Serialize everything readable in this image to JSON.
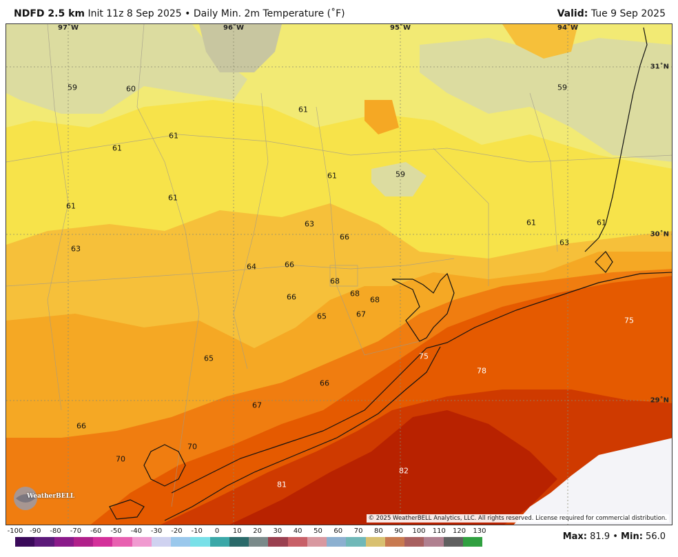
{
  "header": {
    "model": "NDFD 2.5 km",
    "init": "Init 11z 8 Sep 2025",
    "sep": "•",
    "title": "Daily Min. 2m Temperature (˚F)",
    "valid_label": "Valid",
    "valid_value": "Tue 9 Sep 2025"
  },
  "lon_ticks": [
    "97˚W",
    "96˚W",
    "95˚W",
    "94˚W"
  ],
  "lat_ticks": [
    "31˚N",
    "30˚N",
    "29˚N"
  ],
  "values": [
    "59",
    "60",
    "61",
    "61",
    "61",
    "61",
    "61",
    "61",
    "59",
    "59",
    "61",
    "61",
    "63",
    "63",
    "66",
    "64",
    "66",
    "68",
    "68",
    "68",
    "66",
    "65",
    "67",
    "63",
    "75",
    "78",
    "75",
    "65",
    "66",
    "67",
    "66",
    "70",
    "70",
    "81",
    "82"
  ],
  "copyright": "© 2025 WeatherBELL Analytics, LLC. All rights reserved. License required for commercial distribution.",
  "logo_text": "WeatherBELL",
  "colorbar": {
    "labels": [
      "-100",
      "-90",
      "-80",
      "-70",
      "-60",
      "-50",
      "-40",
      "-30",
      "-20",
      "-10",
      "0",
      "10",
      "20",
      "30",
      "40",
      "50",
      "60",
      "70",
      "80",
      "90",
      "100",
      "110",
      "120",
      "130"
    ],
    "colors": [
      "#3a0a5a",
      "#5c1a7a",
      "#8a1a8a",
      "#b0208a",
      "#d4309a",
      "#e860b0",
      "#f09ad0",
      "#cfd2f0",
      "#9ac8ec",
      "#78e0e8",
      "#3aa8a8",
      "#2a6a6a",
      "#7a8a8a",
      "#9a4050",
      "#c86068",
      "#d898a0",
      "#8cb0d0",
      "#70b8b8",
      "#d8c070",
      "#c87a50",
      "#a86060",
      "#b08090",
      "#606060",
      "#30a040"
    ]
  },
  "stats": {
    "max_label": "Max",
    "max_value": "81.9",
    "sep": "•",
    "min_label": "Min",
    "min_value": "56.0"
  },
  "colors": {
    "tan": "#dcdca0",
    "pale_yellow": "#f2ea74",
    "yellow": "#f7e34a",
    "gold": "#f6c03a",
    "light_orange": "#f5a824",
    "orange": "#f07d10",
    "dark_orange": "#e55a00",
    "red_orange": "#cf3a00",
    "deep_red": "#b82200",
    "no_data": "#f4f4f8"
  }
}
